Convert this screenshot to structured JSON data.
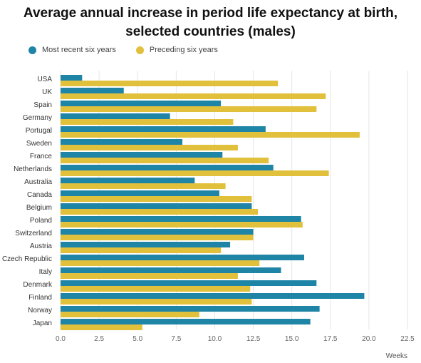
{
  "chart_data": {
    "type": "bar",
    "orientation": "horizontal",
    "title_line1": "Average annual increase in period life expectancy at birth,",
    "title_line2": "selected countries (males)",
    "xlabel": "Weeks",
    "xlim": [
      0,
      22.5
    ],
    "xticks": [
      "0.0",
      "2.5",
      "5.0",
      "7.5",
      "10.0",
      "12.5",
      "15.0",
      "17.5",
      "20.0",
      "22.5"
    ],
    "grid": true,
    "legend_position": "top-left",
    "categories": [
      "USA",
      "UK",
      "Spain",
      "Germany",
      "Portugal",
      "Sweden",
      "France",
      "Netherlands",
      "Australia",
      "Canada",
      "Belgium",
      "Poland",
      "Switzerland",
      "Austria",
      "Czech Republic",
      "Italy",
      "Denmark",
      "Finland",
      "Norway",
      "Japan"
    ],
    "series": [
      {
        "name": "Most recent six years",
        "color": "#1f85a7",
        "values": [
          1.4,
          4.1,
          10.4,
          7.1,
          13.3,
          7.9,
          10.5,
          13.8,
          8.7,
          10.3,
          12.4,
          15.6,
          12.5,
          11.0,
          15.8,
          14.3,
          16.6,
          19.7,
          16.8,
          16.2
        ]
      },
      {
        "name": "Preceding six years",
        "color": "#e1c03c",
        "values": [
          14.1,
          17.2,
          16.6,
          11.2,
          19.4,
          11.5,
          13.5,
          17.4,
          10.7,
          12.4,
          12.8,
          15.7,
          12.5,
          10.4,
          12.9,
          11.5,
          12.3,
          12.4,
          9.0,
          5.3
        ]
      }
    ]
  }
}
